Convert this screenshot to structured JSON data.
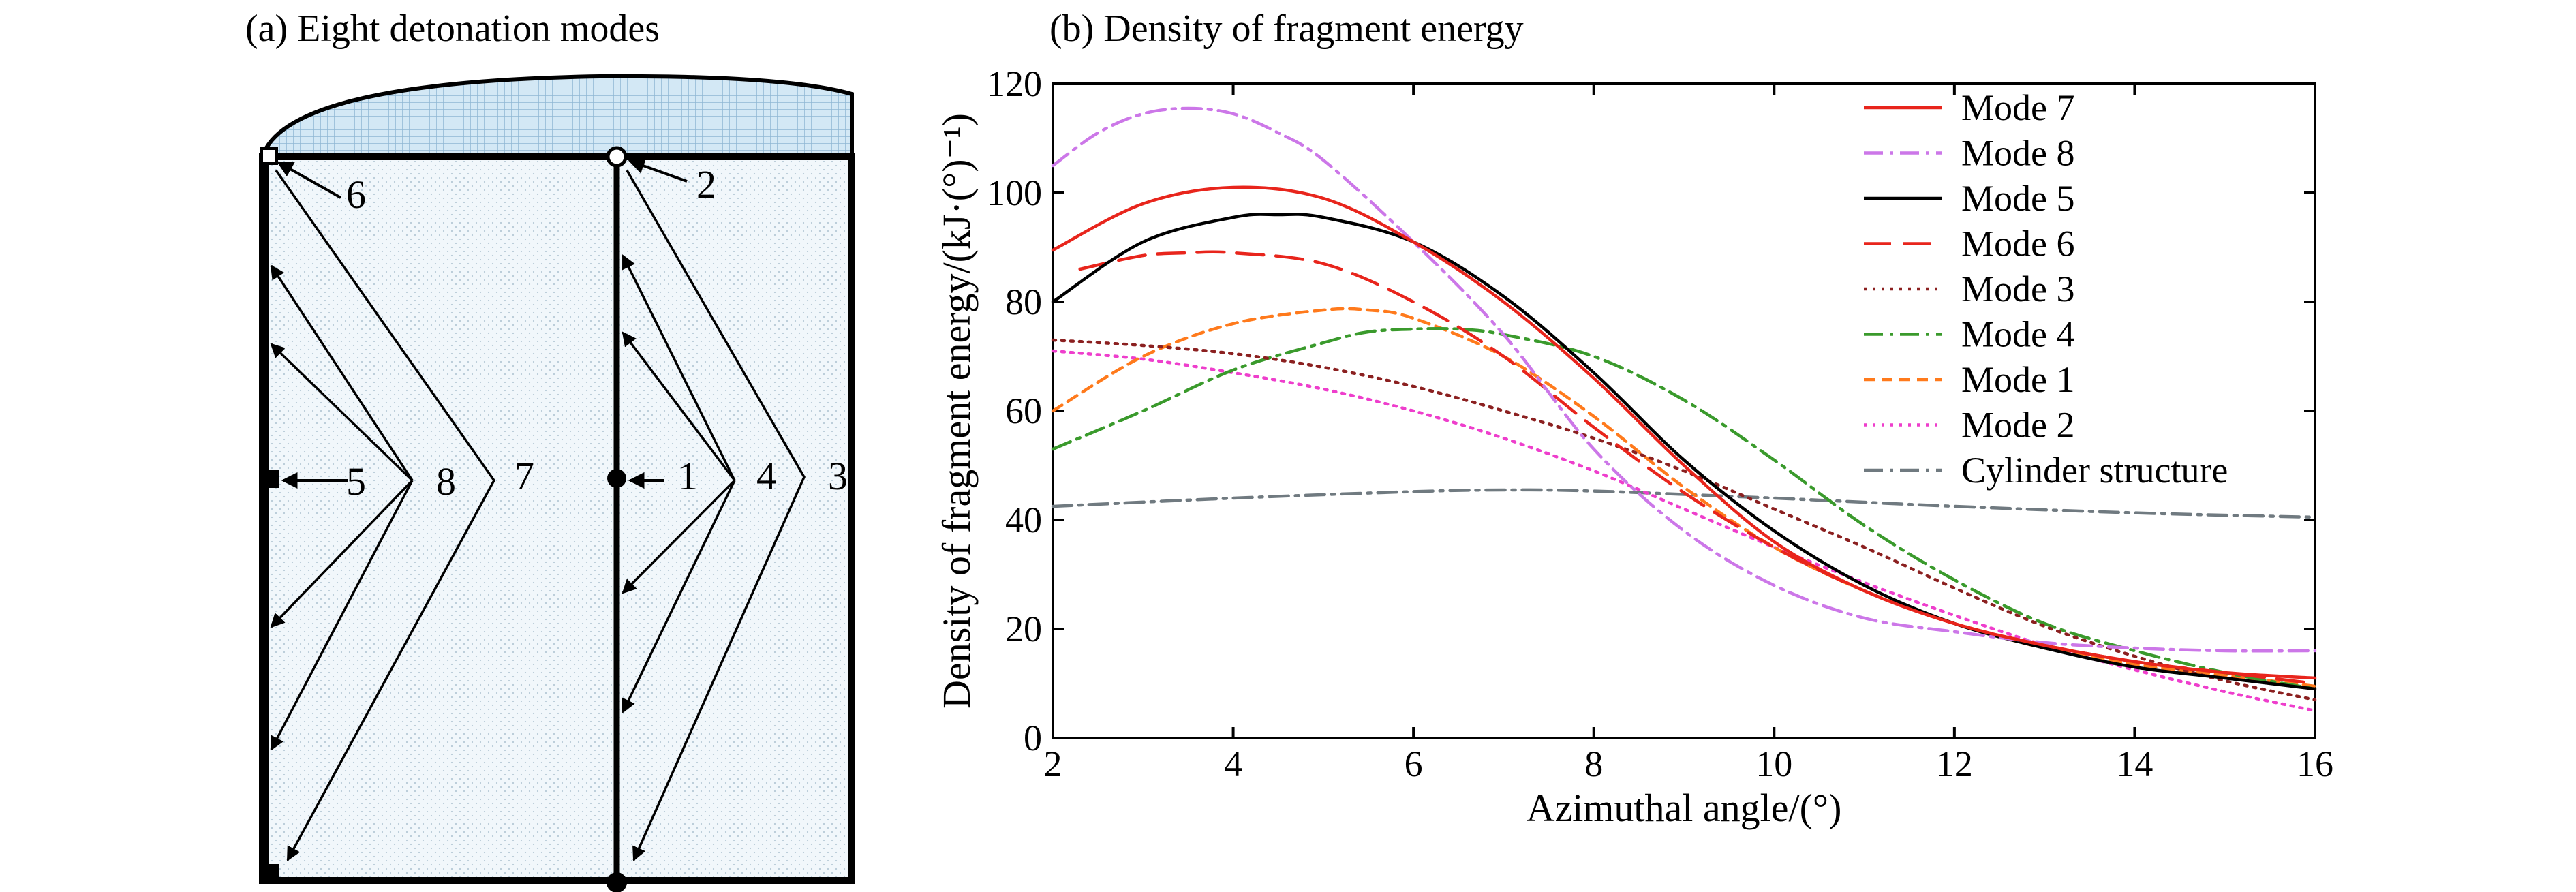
{
  "panel_a": {
    "title": "(a) Eight detonation modes",
    "point_labels": [
      "6",
      "2",
      "5",
      "8",
      "7",
      "1",
      "4",
      "3"
    ]
  },
  "panel_b": {
    "title": "(b) Density of fragment energy"
  },
  "chart_data": {
    "type": "line",
    "xlabel": "Azimuthal angle/(°)",
    "ylabel": "Density of fragment energy/(kJ·(°)⁻¹)",
    "xlim": [
      2,
      16
    ],
    "ylim": [
      0,
      120
    ],
    "xticks": [
      2,
      4,
      6,
      8,
      10,
      12,
      14,
      16
    ],
    "yticks": [
      0,
      20,
      40,
      60,
      80,
      100,
      120
    ],
    "grid": false,
    "legend_position": "top-right",
    "series": [
      {
        "name": "Mode 7",
        "color": "#e8251c",
        "dash": "solid",
        "x": [
          2,
          3,
          4,
          5,
          6,
          7,
          8,
          9,
          10,
          11,
          12,
          13,
          14,
          15,
          16
        ],
        "y": [
          89.5,
          98,
          101,
          99,
          91,
          80,
          66,
          50,
          36,
          27,
          21,
          17,
          14,
          12,
          11
        ]
      },
      {
        "name": "Mode 8",
        "color": "#cc77e8",
        "dash": "dashdot",
        "x": [
          2,
          2.5,
          3,
          3.5,
          4,
          4.5,
          5,
          6,
          7,
          8,
          9,
          10,
          11,
          12,
          13,
          14,
          15,
          16
        ],
        "y": [
          105,
          111,
          114.5,
          115.5,
          114.5,
          111,
          106,
          91,
          74,
          53,
          38,
          28,
          22,
          19.5,
          17.5,
          16.5,
          16,
          16
        ]
      },
      {
        "name": "Mode 5",
        "color": "#000000",
        "dash": "solid",
        "x": [
          2,
          3,
          4,
          4.5,
          5,
          6,
          7,
          8,
          9,
          10,
          11,
          12,
          13,
          14,
          15,
          16
        ],
        "y": [
          80,
          91,
          95.5,
          96,
          95.5,
          91,
          81,
          67,
          51,
          38,
          28,
          21,
          16.5,
          13,
          11,
          9
        ]
      },
      {
        "name": "Mode 6",
        "color": "#e8251c",
        "dash": "longdash",
        "x": [
          2.3,
          3,
          3.5,
          4,
          5,
          6,
          7,
          8,
          9,
          10,
          11,
          12,
          13,
          14,
          15,
          16
        ],
        "y": [
          86,
          88.5,
          89,
          89,
          87,
          80,
          70,
          57,
          45,
          35,
          27,
          21,
          17,
          14,
          12,
          10
        ]
      },
      {
        "name": "Mode 3",
        "color": "#8b2020",
        "dash": "dotted",
        "x": [
          2,
          3,
          4,
          5,
          6,
          7,
          8,
          9,
          10,
          11,
          12,
          13,
          14,
          15,
          16
        ],
        "y": [
          73,
          72,
          70.5,
          68,
          64.5,
          60,
          55,
          49,
          42,
          35,
          27.5,
          20.5,
          15,
          10.5,
          7
        ]
      },
      {
        "name": "Mode 4",
        "color": "#3a9a2c",
        "dash": "dashdot",
        "x": [
          2,
          3,
          4,
          5,
          5.5,
          6,
          6.5,
          7,
          8,
          9,
          10,
          11,
          12,
          13,
          14,
          15,
          16
        ],
        "y": [
          53,
          60,
          67.5,
          72.5,
          74.5,
          75,
          75,
          74,
          70,
          62,
          51,
          39,
          29,
          21,
          16,
          12,
          9
        ]
      },
      {
        "name": "Mode 1",
        "color": "#ff7a1c",
        "dash": "dashed",
        "x": [
          2,
          3,
          4,
          5,
          5.5,
          6,
          7,
          8,
          9,
          10,
          11,
          12,
          13,
          14,
          15,
          16
        ],
        "y": [
          60,
          70,
          76,
          78.5,
          78.5,
          77,
          70,
          59,
          46,
          35,
          27,
          21,
          16.5,
          13.5,
          11.5,
          9.5
        ]
      },
      {
        "name": "Mode 2",
        "color": "#ee3ecc",
        "dash": "dotted",
        "x": [
          2,
          3,
          4,
          5,
          6,
          7,
          8,
          9,
          10,
          11,
          12,
          13,
          14,
          15,
          16
        ],
        "y": [
          71,
          69.5,
          67,
          64,
          60,
          55,
          49,
          42,
          35,
          28.5,
          22.5,
          17,
          12.5,
          8.5,
          5
        ]
      },
      {
        "name": "Cylinder structure",
        "color": "#707a80",
        "dash": "dashdot",
        "x": [
          2,
          4,
          6,
          7,
          8,
          10,
          12,
          14,
          16
        ],
        "y": [
          42.5,
          44,
          45.2,
          45.5,
          45.3,
          44,
          42.5,
          41.3,
          40.5
        ]
      }
    ]
  }
}
